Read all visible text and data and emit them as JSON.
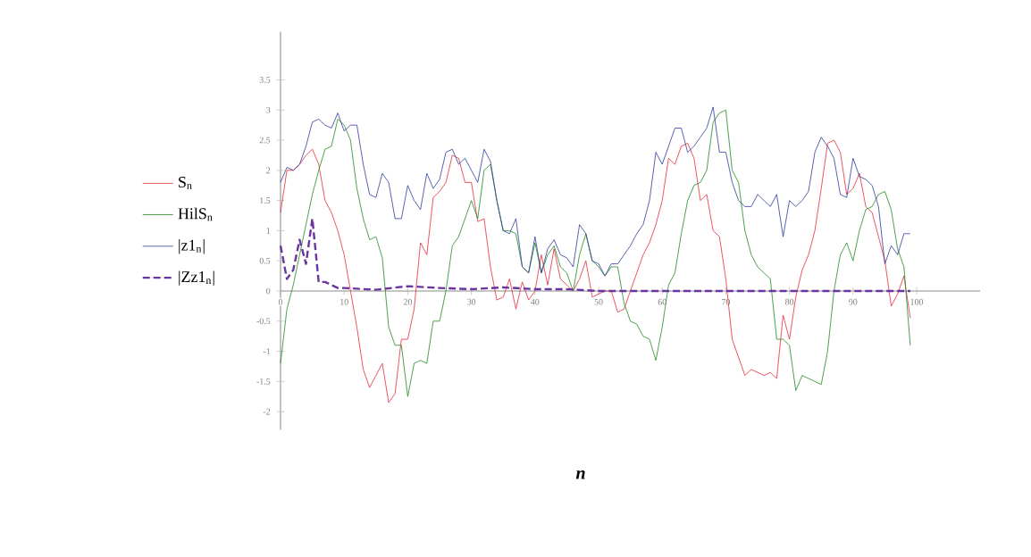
{
  "chart_data": {
    "type": "line",
    "annotations": [
      "n"
    ],
    "legend": "left",
    "grid": false,
    "marker": "none",
    "xlim": [
      0,
      110
    ],
    "ylim": [
      -2.3,
      4.3
    ],
    "xticks": [
      0,
      10,
      20,
      30,
      40,
      50,
      60,
      70,
      80,
      90,
      100
    ],
    "yticks": [
      -2,
      -1.5,
      -1,
      -0.5,
      0,
      0.5,
      1,
      1.5,
      2,
      2.5,
      3,
      3.5
    ],
    "series": [
      {
        "name": "S$_{n}$",
        "color": "#e8283a",
        "line_style": "solid",
        "x": [
          0,
          1,
          2,
          3,
          4,
          5,
          6,
          7,
          8,
          9,
          10,
          11,
          12,
          13,
          14,
          15,
          16,
          17,
          18,
          19,
          20,
          21,
          22,
          23,
          24,
          25,
          26,
          27,
          28,
          29,
          30,
          31,
          32,
          33,
          34,
          35,
          36,
          37,
          38,
          39,
          40,
          41,
          42,
          43,
          44,
          45,
          46,
          47,
          48,
          49,
          50,
          51,
          52,
          53,
          54,
          55,
          56,
          57,
          58,
          59,
          60,
          61,
          62,
          63,
          64,
          65,
          66,
          67,
          68,
          69,
          70,
          71,
          72,
          73,
          74,
          75,
          76,
          77,
          78,
          79,
          80,
          81,
          82,
          83,
          84,
          85,
          86,
          87,
          88,
          89,
          90,
          91,
          92,
          93,
          94,
          95,
          96,
          97,
          98,
          99
        ],
        "values": [
          1.3,
          2.0,
          2.0,
          2.1,
          2.25,
          2.35,
          2.1,
          1.5,
          1.3,
          1.0,
          0.6,
          0.0,
          -0.6,
          -1.3,
          -1.6,
          -1.4,
          -1.2,
          -1.85,
          -1.7,
          -0.8,
          -0.8,
          -0.3,
          0.8,
          0.6,
          1.55,
          1.65,
          1.8,
          2.25,
          2.2,
          1.8,
          1.8,
          1.15,
          1.2,
          0.4,
          -0.15,
          -0.1,
          0.2,
          -0.3,
          0.15,
          -0.15,
          0.0,
          0.6,
          0.1,
          0.7,
          0.2,
          0.1,
          0.0,
          0.2,
          0.5,
          -0.1,
          -0.05,
          0.0,
          0.0,
          -0.35,
          -0.3,
          0.0,
          0.3,
          0.6,
          0.8,
          1.1,
          1.5,
          2.2,
          2.1,
          2.4,
          2.45,
          2.2,
          1.5,
          1.6,
          1.0,
          0.9,
          0.2,
          -0.8,
          -1.1,
          -1.4,
          -1.3,
          -1.35,
          -1.4,
          -1.35,
          -1.45,
          -0.4,
          -0.8,
          -0.1,
          0.35,
          0.6,
          1.0,
          1.7,
          2.45,
          2.5,
          2.3,
          1.6,
          1.7,
          1.95,
          1.4,
          1.3,
          0.9,
          0.5,
          -0.25,
          -0.05,
          0.25,
          -0.45
        ]
      },
      {
        "name": "HilS$_{n}$",
        "color": "#1f8a1f",
        "line_style": "solid",
        "x": [
          0,
          1,
          2,
          3,
          4,
          5,
          6,
          7,
          8,
          9,
          10,
          11,
          12,
          13,
          14,
          15,
          16,
          17,
          18,
          19,
          20,
          21,
          22,
          23,
          24,
          25,
          26,
          27,
          28,
          29,
          30,
          31,
          32,
          33,
          34,
          35,
          36,
          37,
          38,
          39,
          40,
          41,
          42,
          43,
          44,
          45,
          46,
          47,
          48,
          49,
          50,
          51,
          52,
          53,
          54,
          55,
          56,
          57,
          58,
          59,
          60,
          61,
          62,
          63,
          64,
          65,
          66,
          67,
          68,
          69,
          70,
          71,
          72,
          73,
          74,
          75,
          76,
          77,
          78,
          79,
          80,
          81,
          82,
          83,
          84,
          85,
          86,
          87,
          88,
          89,
          90,
          91,
          92,
          93,
          94,
          95,
          96,
          97,
          98,
          99
        ],
        "values": [
          -1.2,
          -0.3,
          0.1,
          0.6,
          1.1,
          1.6,
          2.0,
          2.35,
          2.4,
          2.85,
          2.75,
          2.5,
          1.7,
          1.2,
          0.85,
          0.9,
          0.55,
          -0.6,
          -0.9,
          -0.9,
          -1.75,
          -1.2,
          -1.15,
          -1.2,
          -0.5,
          -0.5,
          0.0,
          0.75,
          0.9,
          1.2,
          1.5,
          1.2,
          2.0,
          2.1,
          1.5,
          1.0,
          1.0,
          0.95,
          0.4,
          0.3,
          0.8,
          0.3,
          0.6,
          0.75,
          0.4,
          0.3,
          0.0,
          0.6,
          0.95,
          0.5,
          0.4,
          0.25,
          0.4,
          0.4,
          -0.2,
          -0.5,
          -0.55,
          -0.75,
          -0.8,
          -1.15,
          -0.6,
          0.1,
          0.3,
          0.95,
          1.5,
          1.75,
          1.8,
          2.0,
          2.8,
          2.95,
          3.0,
          2.0,
          1.8,
          1.0,
          0.6,
          0.4,
          0.3,
          0.2,
          -0.8,
          -0.8,
          -0.9,
          -1.65,
          -1.4,
          -1.45,
          -1.5,
          -1.55,
          -1.0,
          0.0,
          0.6,
          0.8,
          0.5,
          1.0,
          1.35,
          1.4,
          1.6,
          1.65,
          1.35,
          0.7,
          0.4,
          -0.9
        ]
      },
      {
        "name": "|z1$_{n}$|",
        "color": "#2e3b9c",
        "line_style": "solid",
        "x": [
          0,
          1,
          2,
          3,
          4,
          5,
          6,
          7,
          8,
          9,
          10,
          11,
          12,
          13,
          14,
          15,
          16,
          17,
          18,
          19,
          20,
          21,
          22,
          23,
          24,
          25,
          26,
          27,
          28,
          29,
          30,
          31,
          32,
          33,
          34,
          35,
          36,
          37,
          38,
          39,
          40,
          41,
          42,
          43,
          44,
          45,
          46,
          47,
          48,
          49,
          50,
          51,
          52,
          53,
          54,
          55,
          56,
          57,
          58,
          59,
          60,
          61,
          62,
          63,
          64,
          65,
          66,
          67,
          68,
          69,
          70,
          71,
          72,
          73,
          74,
          75,
          76,
          77,
          78,
          79,
          80,
          81,
          82,
          83,
          84,
          85,
          86,
          87,
          88,
          89,
          90,
          91,
          92,
          93,
          94,
          95,
          96,
          97,
          98,
          99
        ],
        "values": [
          1.8,
          2.05,
          2.0,
          2.1,
          2.4,
          2.8,
          2.85,
          2.75,
          2.7,
          2.95,
          2.65,
          2.75,
          2.75,
          2.1,
          1.6,
          1.55,
          1.95,
          1.8,
          1.2,
          1.2,
          1.75,
          1.5,
          1.35,
          1.95,
          1.7,
          1.85,
          2.3,
          2.35,
          2.1,
          2.2,
          2.0,
          1.8,
          2.35,
          2.15,
          1.5,
          1.0,
          0.95,
          1.2,
          0.4,
          0.3,
          0.9,
          0.3,
          0.7,
          0.85,
          0.6,
          0.55,
          0.4,
          1.1,
          0.95,
          0.5,
          0.45,
          0.25,
          0.45,
          0.45,
          0.6,
          0.75,
          0.95,
          1.1,
          1.5,
          2.3,
          2.1,
          2.4,
          2.7,
          2.7,
          2.3,
          2.4,
          2.55,
          2.7,
          3.05,
          2.3,
          2.3,
          1.8,
          1.5,
          1.4,
          1.4,
          1.6,
          1.5,
          1.4,
          1.6,
          0.9,
          1.5,
          1.4,
          1.5,
          1.65,
          2.3,
          2.55,
          2.4,
          2.2,
          1.6,
          1.55,
          2.2,
          1.9,
          1.85,
          1.75,
          1.4,
          0.45,
          0.75,
          0.6,
          0.95,
          0.95
        ]
      },
      {
        "name": "|Zz1$_{n}$|",
        "color": "#6a35a0",
        "line_style": "dashed",
        "x": [
          0,
          1,
          2,
          3,
          4,
          5,
          6,
          7,
          8,
          9,
          10,
          15,
          20,
          25,
          30,
          35,
          40,
          45,
          50,
          60,
          70,
          80,
          90,
          99
        ],
        "values": [
          0.75,
          0.2,
          0.35,
          0.85,
          0.45,
          1.2,
          0.15,
          0.15,
          0.1,
          0.05,
          0.05,
          0.02,
          0.08,
          0.05,
          0.03,
          0.06,
          0.03,
          0.03,
          0.0,
          0.0,
          0.0,
          0.0,
          0.0,
          0.0
        ]
      }
    ]
  }
}
